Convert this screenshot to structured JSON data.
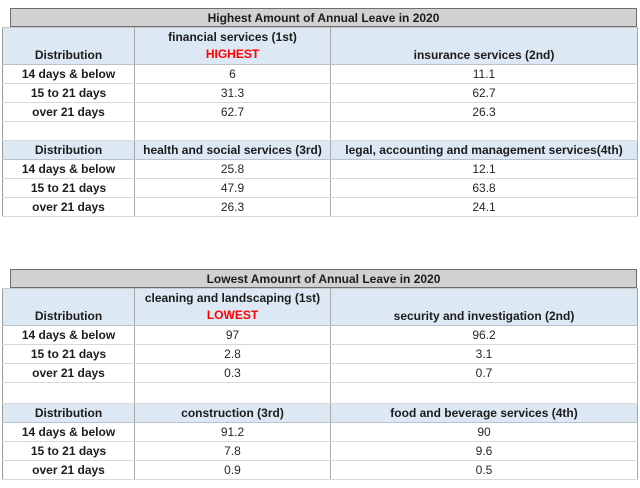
{
  "colors": {
    "title_bg": "#d1d1d1",
    "title_border": "#6e6e6e",
    "header_bg": "#dce8f4",
    "highlight_red": "#ff0000",
    "grid_vertical": "#a9a9a9",
    "grid_horizontal": "#d8d8d8",
    "text": "#1c1c1c"
  },
  "chart_data": [
    {
      "type": "table",
      "title": "Highest Amount of Annual Leave in 2020",
      "row_header": "Distribution",
      "highlight_label": "HIGHEST",
      "highlight_color": "#ff0000",
      "categories": [
        "14 days & below",
        "15 to 21 days",
        "over 21 days"
      ],
      "series": [
        {
          "name": "financial services (1st)",
          "values": [
            6,
            31.3,
            62.7
          ]
        },
        {
          "name": "insurance services (2nd)",
          "values": [
            11.1,
            62.7,
            26.3
          ]
        },
        {
          "name": "health and social services (3rd)",
          "values": [
            25.8,
            47.9,
            26.3
          ]
        },
        {
          "name": "legal, accounting and management services(4th)",
          "values": [
            12.1,
            63.8,
            24.1
          ]
        }
      ]
    },
    {
      "type": "table",
      "title": "Lowest Amounrt of Annual Leave in 2020",
      "row_header": "Distribution",
      "highlight_label": "LOWEST",
      "highlight_color": "#ff0000",
      "categories": [
        "14 days & below",
        "15 to 21 days",
        "over 21 days"
      ],
      "series": [
        {
          "name": "cleaning and landscaping (1st)",
          "values": [
            97,
            2.8,
            0.3
          ]
        },
        {
          "name": "security and investigation (2nd)",
          "values": [
            96.2,
            3.1,
            0.7
          ]
        },
        {
          "name": "construction (3rd)",
          "values": [
            91.2,
            7.8,
            0.9
          ]
        },
        {
          "name": "food and beverage services (4th)",
          "values": [
            90,
            9.6,
            0.5
          ]
        }
      ]
    }
  ]
}
